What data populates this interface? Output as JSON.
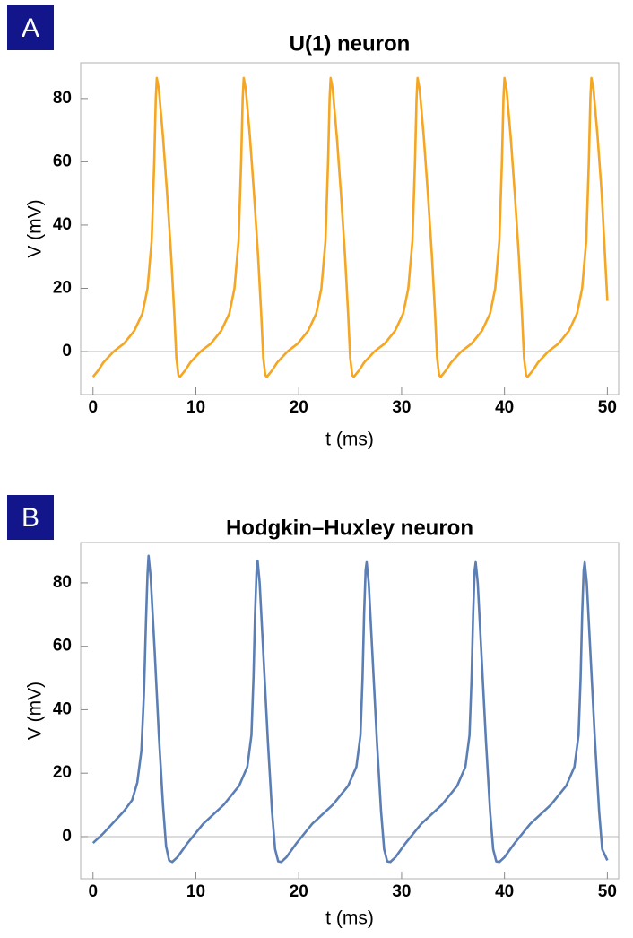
{
  "chart_data": [
    {
      "type": "line",
      "panel_label": "A",
      "title": "U(1) neuron",
      "x_label": "t (ms)",
      "y_label": "V (mV)",
      "color": "#f5a623",
      "zero_line": true,
      "xlim": [
        -1.2,
        51.1
      ],
      "ylim": [
        -13.6,
        91.3
      ],
      "xticks": [
        0,
        10,
        20,
        30,
        40,
        50
      ],
      "yticks": [
        0,
        20,
        40,
        60,
        80
      ],
      "x": [
        0,
        0.5,
        1,
        2,
        3,
        4,
        4.8,
        5.3,
        5.7,
        5.95,
        6.1,
        6.2,
        6.4,
        6.8,
        7.2,
        7.6,
        7.9,
        8.1,
        8.3,
        8.45,
        8.95,
        9.45,
        10.45,
        11.45,
        12.45,
        13.25,
        13.75,
        14.15,
        14.4,
        14.55,
        14.65,
        14.85,
        15.25,
        15.65,
        16.05,
        16.35,
        16.55,
        16.75,
        16.9,
        17.4,
        17.9,
        18.9,
        19.9,
        20.9,
        21.7,
        22.2,
        22.6,
        22.85,
        23,
        23.1,
        23.3,
        23.7,
        24.1,
        24.5,
        24.8,
        25,
        25.2,
        25.35,
        25.85,
        26.35,
        27.35,
        28.35,
        29.35,
        30.15,
        30.65,
        31.05,
        31.3,
        31.45,
        31.55,
        31.75,
        32.15,
        32.55,
        32.95,
        33.25,
        33.45,
        33.65,
        33.8,
        34.3,
        34.8,
        35.8,
        36.8,
        37.8,
        38.6,
        39.1,
        39.5,
        39.75,
        39.9,
        40,
        40.2,
        40.6,
        41,
        41.4,
        41.7,
        41.9,
        42.1,
        42.25,
        42.75,
        43.25,
        44.25,
        45.25,
        46.25,
        47.05,
        47.55,
        47.95,
        48.2,
        48.35,
        48.45,
        48.65,
        49.05,
        49.45,
        50
      ],
      "values": [
        -8,
        -6,
        -3.5,
        0,
        2.5,
        6.5,
        12,
        20,
        35,
        60,
        80,
        86.5,
        83,
        68,
        50,
        30,
        12,
        -2,
        -7.5,
        -8,
        -6,
        -3.5,
        0,
        2.5,
        6.5,
        12,
        20,
        35,
        60,
        80,
        86.5,
        83,
        68,
        50,
        30,
        12,
        -2,
        -7.5,
        -8,
        -6,
        -3.5,
        0,
        2.5,
        6.5,
        12,
        20,
        35,
        60,
        80,
        86.5,
        83,
        68,
        50,
        30,
        12,
        -2,
        -7.5,
        -8,
        -6,
        -3.5,
        0,
        2.5,
        6.5,
        12,
        20,
        35,
        60,
        80,
        86.5,
        83,
        68,
        50,
        30,
        12,
        -2,
        -7.5,
        -8,
        -6,
        -3.5,
        0,
        2.5,
        6.5,
        12,
        20,
        35,
        60,
        80,
        86.5,
        83,
        68,
        50,
        30,
        12,
        -2,
        -7.5,
        -8,
        -6,
        -3.5,
        0,
        2.5,
        6.5,
        12,
        20,
        35,
        60,
        80,
        86.5,
        83,
        68,
        50,
        16
      ]
    },
    {
      "type": "line",
      "panel_label": "B",
      "title": "Hodgkin–Huxley neuron",
      "x_label": "t (ms)",
      "y_label": "V (mV)",
      "color": "#5b7fb5",
      "zero_line": true,
      "xlim": [
        -1.2,
        51.1
      ],
      "ylim": [
        -13.3,
        92.7
      ],
      "xticks": [
        0,
        10,
        20,
        30,
        40,
        50
      ],
      "yticks": [
        0,
        20,
        40,
        60,
        80
      ],
      "x": [
        0,
        1,
        2,
        3,
        3.8,
        4.3,
        4.7,
        4.95,
        5.15,
        5.3,
        5.4,
        5.6,
        6.0,
        6.4,
        6.8,
        7.1,
        7.4,
        7.7,
        8.2,
        9.2,
        10.7,
        12.7,
        14.2,
        15.0,
        15.4,
        15.6,
        15.75,
        15.9,
        16.0,
        16.2,
        16.6,
        17.0,
        17.4,
        17.7,
        18.0,
        18.3,
        18.8,
        19.8,
        21.3,
        23.3,
        24.8,
        25.6,
        26.0,
        26.2,
        26.35,
        26.5,
        26.6,
        26.8,
        27.2,
        27.6,
        28.0,
        28.3,
        28.6,
        28.9,
        29.4,
        30.4,
        31.9,
        33.9,
        35.4,
        36.2,
        36.6,
        36.8,
        36.95,
        37.1,
        37.2,
        37.4,
        37.8,
        38.2,
        38.6,
        38.9,
        39.2,
        39.5,
        40.0,
        41.0,
        42.5,
        44.5,
        46.0,
        46.8,
        47.2,
        47.4,
        47.55,
        47.7,
        47.8,
        48.0,
        48.4,
        48.8,
        49.2,
        49.5,
        50
      ],
      "values": [
        -2,
        1,
        4.5,
        8,
        11.5,
        17,
        27,
        45,
        68,
        83,
        88.5,
        82,
        58,
        32,
        10,
        -3,
        -7.5,
        -8,
        -6.5,
        -2,
        4,
        10,
        16,
        22,
        32,
        50,
        70,
        84,
        87,
        80,
        55,
        30,
        8,
        -4,
        -7.8,
        -8,
        -6.5,
        -2,
        4,
        10,
        16,
        22,
        32,
        50,
        70,
        84,
        86.5,
        80,
        55,
        30,
        8,
        -4,
        -7.8,
        -8,
        -6.5,
        -2,
        4,
        10,
        16,
        22,
        32,
        50,
        70,
        84,
        86.5,
        80,
        55,
        30,
        8,
        -4,
        -7.8,
        -8,
        -6.5,
        -2,
        4,
        10,
        16,
        22,
        32,
        50,
        70,
        84,
        86.5,
        80,
        55,
        30,
        8,
        -4,
        -7.5
      ]
    }
  ]
}
